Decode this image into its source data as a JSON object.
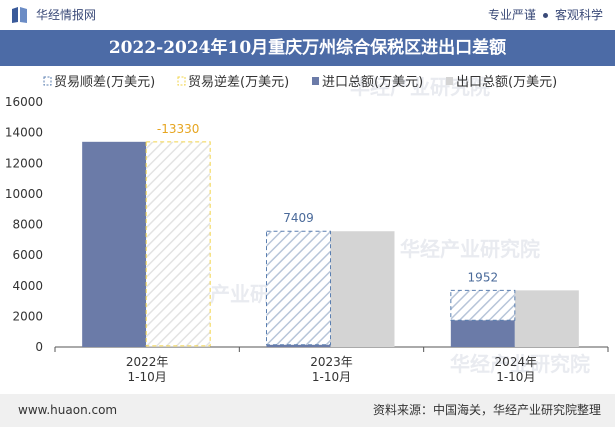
{
  "header": {
    "brand": "华经情报网",
    "slogan_left": "专业严谨",
    "slogan_right": "客观科学"
  },
  "colors": {
    "title_bg": "#4c6ba6",
    "import": "#6b7ba8",
    "export": "#d4d4d4",
    "surplus": "#5b7fb0",
    "deficit": "#f2d44a",
    "label_surplus": "#4a6a9a",
    "label_deficit": "#e6a520"
  },
  "chart_data": {
    "type": "bar",
    "title": "2022-2024年10月重庆万州综合保税区进出口差额",
    "categories": [
      "2022年\n1-10月",
      "2023年\n1-10月",
      "2024年\n1-10月"
    ],
    "series": [
      {
        "name": "贸易顺差(万美元)",
        "kind": "surplus",
        "values": [
          null,
          7409,
          1952
        ]
      },
      {
        "name": "贸易逆差(万美元)",
        "kind": "deficit",
        "values": [
          13330,
          null,
          null
        ]
      },
      {
        "name": "进口总额(万美元)",
        "kind": "import",
        "values": [
          13400,
          150,
          1750
        ]
      },
      {
        "name": "出口总额(万美元)",
        "kind": "export",
        "values": [
          70,
          7560,
          3700
        ]
      }
    ],
    "data_labels": [
      "-13330",
      "7409",
      "1952"
    ],
    "ylim": [
      0,
      16000
    ],
    "yticks": [
      "0",
      "2000",
      "4000",
      "6000",
      "8000",
      "10000",
      "12000",
      "14000",
      "16000"
    ],
    "xlabel": "",
    "ylabel": ""
  },
  "footer": {
    "website": "www.huaon.com",
    "source": "资料来源：中国海关，华经产业研究院整理"
  },
  "watermarks": [
    "华经产业研究院",
    "华经产业研究院",
    "华经产业研究院",
    "华经产业研究院"
  ]
}
